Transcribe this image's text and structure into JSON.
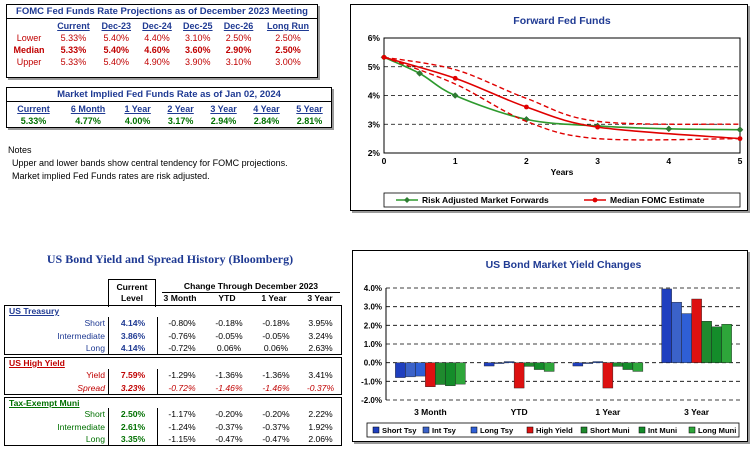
{
  "fomc": {
    "title": "FOMC Fed Funds Rate Projections as of December 2023 Meeting",
    "columns": [
      "Current",
      "Dec-23",
      "Dec-24",
      "Dec-25",
      "Dec-26",
      "Long Run"
    ],
    "rows": [
      {
        "label": "Lower",
        "values": [
          "5.33%",
          "5.40%",
          "4.40%",
          "3.10%",
          "2.50%",
          "2.50%"
        ]
      },
      {
        "label": "Median",
        "values": [
          "5.33%",
          "5.40%",
          "4.60%",
          "3.60%",
          "2.90%",
          "2.50%"
        ]
      },
      {
        "label": "Upper",
        "values": [
          "5.33%",
          "5.40%",
          "4.90%",
          "3.90%",
          "3.10%",
          "3.00%"
        ]
      }
    ]
  },
  "market": {
    "title": "Market Implied Fed Funds Rate as of Jan 02, 2024",
    "columns": [
      "Current",
      "6 Month",
      "1 Year",
      "2 Year",
      "3 Year",
      "4 Year",
      "5 Year"
    ],
    "values": [
      "5.33%",
      "4.77%",
      "4.00%",
      "3.17%",
      "2.94%",
      "2.84%",
      "2.81%"
    ]
  },
  "notes": {
    "title": "Notes",
    "line1": "Upper and lower bands show central tendency for FOMC projections.",
    "line2": "Market implied Fed Funds rates are risk adjusted."
  },
  "bond_table": {
    "title": "US Bond Yield and Spread History (Bloomberg)",
    "current_header_1": "Current",
    "current_header_2": "Level",
    "change_header": "Change Through December 2023",
    "columns": [
      "3 Month",
      "YTD",
      "1 Year",
      "3 Year"
    ],
    "sections": [
      {
        "name": "US Treasury",
        "rows": [
          {
            "label": "Short",
            "level": "4.14%",
            "values": [
              "-0.80%",
              "-0.18%",
              "-0.18%",
              "3.95%"
            ]
          },
          {
            "label": "Intermediate",
            "level": "3.86%",
            "values": [
              "-0.76%",
              "-0.05%",
              "-0.05%",
              "3.24%"
            ]
          },
          {
            "label": "Long",
            "level": "4.14%",
            "values": [
              "-0.72%",
              "0.06%",
              "0.06%",
              "2.63%"
            ]
          }
        ]
      },
      {
        "name": "US High Yield",
        "rows": [
          {
            "label": "Yield",
            "level": "7.59%",
            "values": [
              "-1.29%",
              "-1.36%",
              "-1.36%",
              "3.41%"
            ]
          },
          {
            "label": "Spread",
            "level": "3.23%",
            "values": [
              "-0.72%",
              "-1.46%",
              "-1.46%",
              "-0.37%"
            ],
            "spread": true
          }
        ]
      },
      {
        "name": "Tax-Exempt Muni",
        "rows": [
          {
            "label": "Short",
            "level": "2.50%",
            "values": [
              "-1.17%",
              "-0.20%",
              "-0.20%",
              "2.22%"
            ]
          },
          {
            "label": "Intermediate",
            "level": "2.61%",
            "values": [
              "-1.24%",
              "-0.37%",
              "-0.37%",
              "1.92%"
            ]
          },
          {
            "label": "Long",
            "level": "3.35%",
            "values": [
              "-1.15%",
              "-0.47%",
              "-0.47%",
              "2.06%"
            ]
          }
        ]
      }
    ]
  },
  "chart_data": [
    {
      "type": "line",
      "title": "Forward Fed Funds",
      "xlabel": "Years",
      "ylabel": "",
      "xlim": [
        0,
        5
      ],
      "ylim": [
        2,
        6
      ],
      "xticks": [
        "0",
        "1",
        "2",
        "3",
        "4",
        "5"
      ],
      "yticks": [
        "2%",
        "3%",
        "4%",
        "5%",
        "6%"
      ],
      "grid": true,
      "gridStyle": "dashed",
      "series": [
        {
          "name": "Risk Adjusted Market Forwards",
          "color": "#2e9a2e",
          "marker": "diamond",
          "x": [
            0,
            0.5,
            1,
            2,
            3,
            4,
            5
          ],
          "y": [
            5.33,
            4.77,
            4.0,
            3.17,
            2.94,
            2.84,
            2.81
          ]
        },
        {
          "name": "Median FOMC Estimate",
          "color": "#e00000",
          "marker": "dot",
          "x": [
            0,
            1,
            2,
            3,
            5
          ],
          "y": [
            5.33,
            4.6,
            3.6,
            2.9,
            2.5
          ]
        },
        {
          "color": "#e00000",
          "dashed": true,
          "x": [
            0,
            1,
            2,
            3,
            5
          ],
          "y": [
            5.33,
            4.9,
            3.9,
            3.1,
            3.0
          ]
        },
        {
          "color": "#e00000",
          "dashed": true,
          "x": [
            0,
            1,
            2,
            3,
            5
          ],
          "y": [
            5.33,
            4.4,
            3.1,
            2.5,
            2.5
          ]
        }
      ],
      "legend_position": "bottom"
    },
    {
      "type": "bar",
      "title": "US Bond Market Yield Changes",
      "categories": [
        "3 Month",
        "YTD",
        "1 Year",
        "3 Year"
      ],
      "ylim": [
        -2,
        4
      ],
      "yticks": [
        "-2.0%",
        "-1.0%",
        "0.0%",
        "1.0%",
        "2.0%",
        "3.0%",
        "4.0%"
      ],
      "grid": true,
      "gridStyle": "dashed",
      "series": [
        {
          "name": "Short Tsy",
          "color": "#1f3fbf",
          "values": [
            -0.8,
            -0.18,
            -0.18,
            3.95
          ]
        },
        {
          "name": "Int Tsy",
          "color": "#3b62c9",
          "values": [
            -0.76,
            -0.05,
            -0.05,
            3.24
          ]
        },
        {
          "name": "Long Tsy",
          "color": "#2f5fd6",
          "values": [
            -0.72,
            0.06,
            0.06,
            2.63
          ]
        },
        {
          "name": "High Yield",
          "color": "#dd1111",
          "values": [
            -1.29,
            -1.36,
            -1.36,
            3.41
          ]
        },
        {
          "name": "Short Muni",
          "color": "#1f8a2e",
          "values": [
            -1.17,
            -0.2,
            -0.2,
            2.22
          ]
        },
        {
          "name": "Int Muni",
          "color": "#148c2a",
          "values": [
            -1.24,
            -0.37,
            -0.37,
            1.92
          ]
        },
        {
          "name": "Long Muni",
          "color": "#2ea63a",
          "values": [
            -1.15,
            -0.47,
            -0.47,
            2.06
          ]
        }
      ],
      "legend_position": "bottom"
    }
  ]
}
